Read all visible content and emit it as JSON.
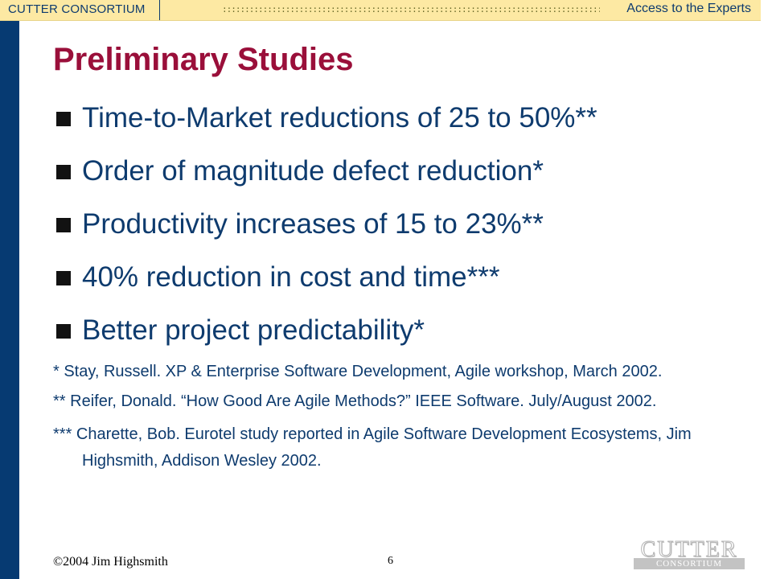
{
  "header": {
    "brand": "CUTTER CONSORTIUM",
    "dots": "::::::::::::::::::::::::::::::::::::::::::::::::::::::::::::::::::::::::::::::::::::::::::::::::::::::::::::::::::::::::::::::::::::",
    "tagline": "Access to the Experts"
  },
  "slide": {
    "title": "Preliminary Studies",
    "bullets": [
      "Time-to-Market reductions of 25 to 50%**",
      "Order of magnitude defect reduction*",
      "Productivity increases of 15 to 23%**",
      "40% reduction in cost and time***",
      "Better project predictability*"
    ],
    "references": [
      "* Stay, Russell. XP & Enterprise Software Development, Agile workshop, March 2002.",
      "** Reifer, Donald. “How Good Are Agile Methods?” IEEE Software. July/August 2002.",
      "*** Charette, Bob. Eurotel study reported in Agile Software Development Ecosystems, Jim Highsmith, Addison Wesley 2002."
    ]
  },
  "footer": {
    "copyright": "©2004  Jim  Highsmith",
    "page_number": "6",
    "logo_main": "CUTTER",
    "logo_sub": "CONSORTIUM"
  },
  "colors": {
    "title": "#9a0f3a",
    "body_text": "#0e3b6e",
    "left_bar": "#063a72",
    "header_bg": "#fde9a3"
  }
}
